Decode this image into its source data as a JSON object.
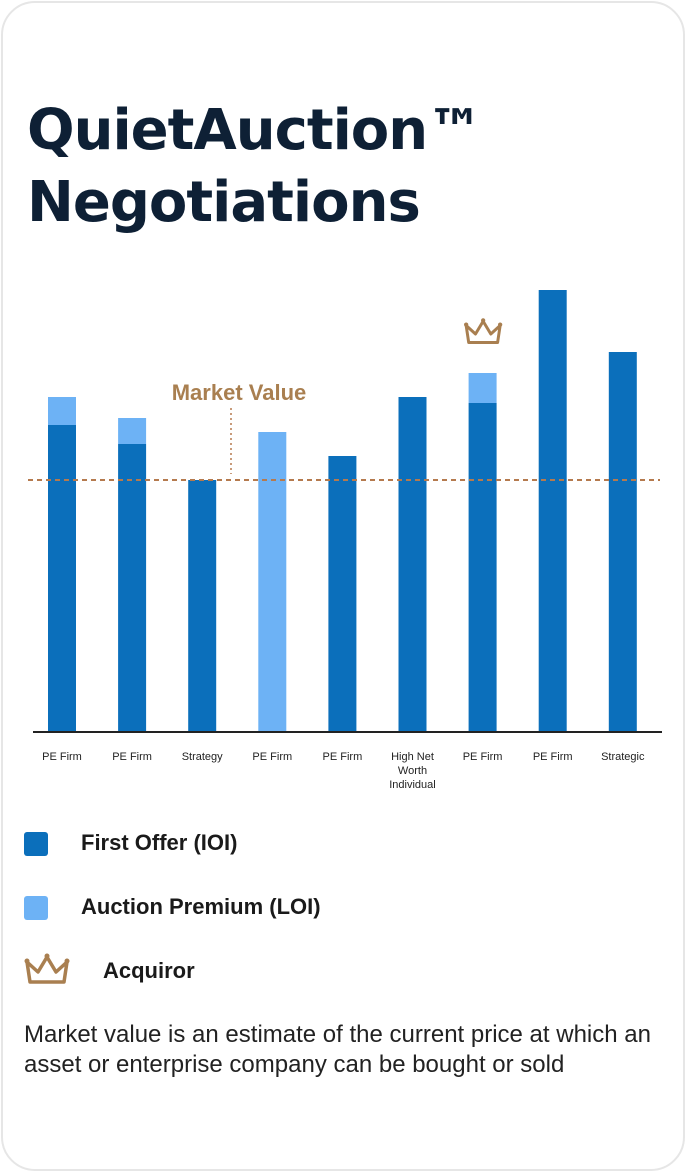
{
  "title": {
    "line1": "QuietAuction™",
    "line2": "Negotiations"
  },
  "chart_data": {
    "type": "bar",
    "stacked": true,
    "categories": [
      "PE Firm",
      "PE Firm",
      "Strategy",
      "PE Firm",
      "PE Firm",
      "High Net Worth Individual",
      "PE Firm",
      "PE Firm",
      "Strategic"
    ],
    "series": [
      {
        "name": "First Offer (IOI)",
        "color": "#0b6fbb",
        "values": [
          30.7,
          28.8,
          25.2,
          0,
          27.6,
          33.5,
          32.9,
          44.2,
          38.0
        ]
      },
      {
        "name": "Auction Premium (LOI)",
        "color": "#6db2f5",
        "values": [
          2.8,
          2.6,
          0,
          30.0,
          0,
          0,
          3.0,
          0,
          0
        ]
      }
    ],
    "reference_line": {
      "label": "Market Value",
      "value": 25.2,
      "color": "#b57a4e",
      "label_color": "#a97f50"
    },
    "acquiror_index": 6,
    "ylim": [
      0,
      44.2
    ],
    "grid": false,
    "xlabel": "",
    "ylabel": ""
  },
  "legend": {
    "ioi": {
      "label": "First Offer (IOI)",
      "color": "#0b6fbb"
    },
    "loi": {
      "label": "Auction Premium (LOI)",
      "color": "#6db2f5"
    },
    "acquiror": {
      "label": "Acquiror",
      "icon": "crown-icon",
      "color": "#a97f50"
    }
  },
  "footnote": "Market value is an estimate of the current price at which an asset or enterprise company can be bought or sold"
}
